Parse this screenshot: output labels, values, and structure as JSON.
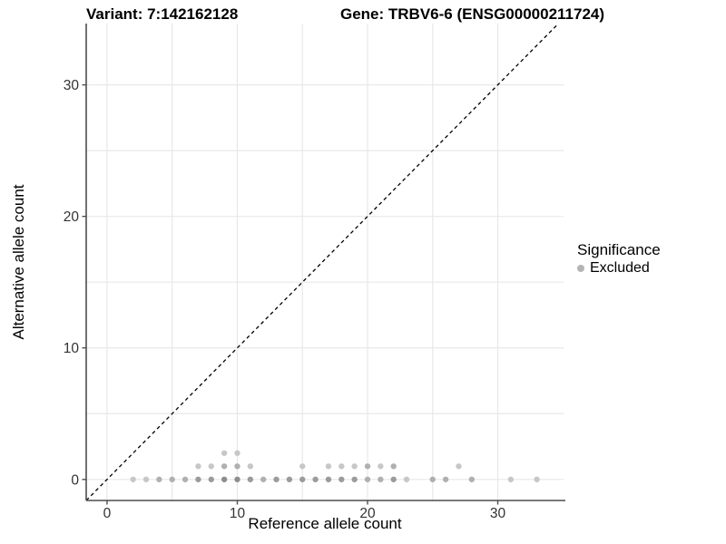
{
  "header": {
    "variant_title": "Variant: 7:142162128",
    "gene_title": "Gene: TRBV6-6 (ENSG00000211724)"
  },
  "legend": {
    "title": "Significance",
    "items": [
      {
        "label": "Excluded",
        "color": "#b4b4b4"
      }
    ]
  },
  "colors": {
    "background": "#ffffff",
    "grid": "#e8e8e8",
    "axis_line": "#4d4d4d",
    "tick_label": "#333333",
    "identity_line": "#000000"
  },
  "chart_data": {
    "type": "scatter",
    "title": "Variant: 7:142162128  /  Gene: TRBV6-6 (ENSG00000211724)",
    "xlabel": "Reference allele count",
    "ylabel": "Alternative allele count",
    "xlim": [
      -1.6,
      35.05
    ],
    "ylim": [
      -1.6,
      34.66
    ],
    "xticks": [
      0,
      10,
      20,
      30
    ],
    "yticks": [
      0,
      10,
      20,
      30
    ],
    "grid_step": 5,
    "grid": true,
    "legend_position": "right",
    "identity_line": {
      "slope": 1,
      "intercept": 0,
      "style": "dashed",
      "color": "#000000"
    },
    "point_colors": {
      "L": "#c7c7c7",
      "M": "#b0b0b0",
      "D": "#9b9b9b",
      "X": "#8e8e8e"
    },
    "series": [
      {
        "name": "Excluded",
        "points": [
          [
            2,
            0,
            "L"
          ],
          [
            3,
            0,
            "L"
          ],
          [
            4,
            0,
            "M"
          ],
          [
            5,
            0,
            "M"
          ],
          [
            6,
            0,
            "M"
          ],
          [
            7,
            0,
            "D"
          ],
          [
            8,
            0,
            "D"
          ],
          [
            9,
            0,
            "X"
          ],
          [
            10,
            0,
            "X"
          ],
          [
            11,
            0,
            "D"
          ],
          [
            12,
            0,
            "M"
          ],
          [
            13,
            0,
            "D"
          ],
          [
            14,
            0,
            "D"
          ],
          [
            15,
            0,
            "D"
          ],
          [
            16,
            0,
            "D"
          ],
          [
            17,
            0,
            "D"
          ],
          [
            18,
            0,
            "D"
          ],
          [
            19,
            0,
            "D"
          ],
          [
            20,
            0,
            "M"
          ],
          [
            21,
            0,
            "M"
          ],
          [
            22,
            0,
            "D"
          ],
          [
            23,
            0,
            "L"
          ],
          [
            25,
            0,
            "M"
          ],
          [
            26,
            0,
            "M"
          ],
          [
            28,
            0,
            "M"
          ],
          [
            31,
            0,
            "L"
          ],
          [
            33,
            0,
            "L"
          ],
          [
            7,
            1,
            "L"
          ],
          [
            8,
            1,
            "L"
          ],
          [
            9,
            1,
            "M"
          ],
          [
            10,
            1,
            "M"
          ],
          [
            11,
            1,
            "L"
          ],
          [
            15,
            1,
            "L"
          ],
          [
            17,
            1,
            "L"
          ],
          [
            18,
            1,
            "L"
          ],
          [
            19,
            1,
            "L"
          ],
          [
            20,
            1,
            "M"
          ],
          [
            21,
            1,
            "L"
          ],
          [
            22,
            1,
            "M"
          ],
          [
            27,
            1,
            "L"
          ],
          [
            9,
            2,
            "L"
          ],
          [
            10,
            2,
            "L"
          ]
        ]
      }
    ]
  }
}
